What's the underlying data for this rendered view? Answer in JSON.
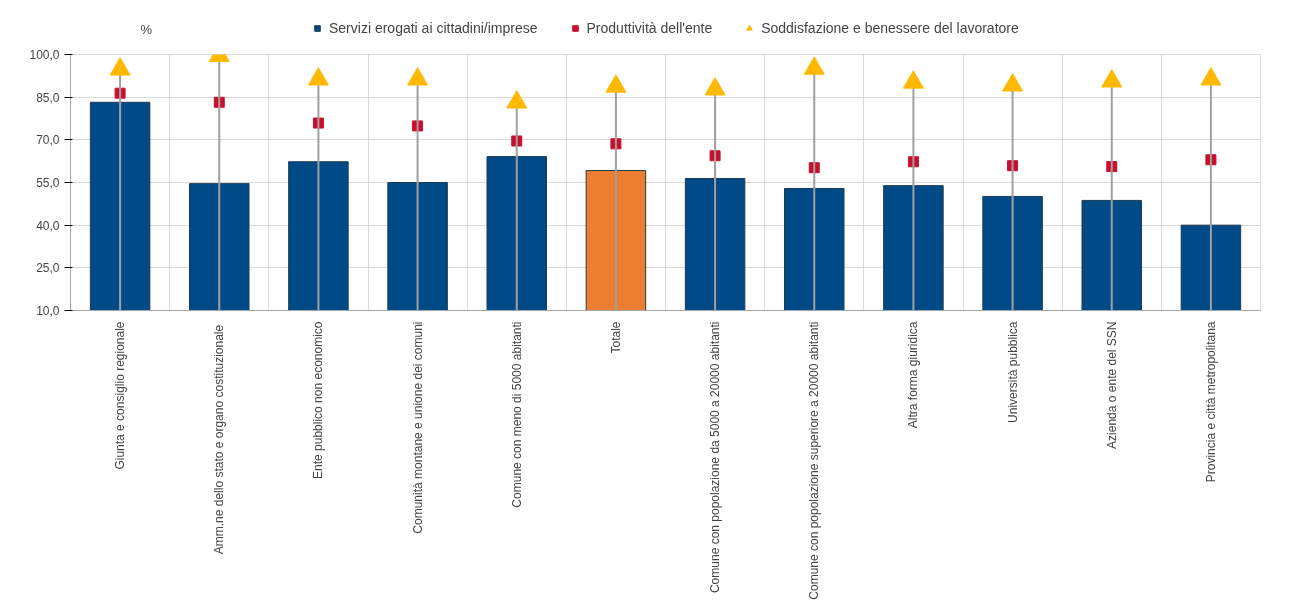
{
  "chart_data": {
    "type": "bar",
    "ylabel": "%",
    "categories": [
      "Giunta e consiglio regionale",
      "Amm.ne dello stato  e organo costituzionale",
      "Ente pubblico non economico",
      "Comunità montane e unione dei comuni",
      "Comune con meno di 5000 abitanti",
      "Totale",
      "Comune con popolazione da 5000 a 20000 abitanti",
      "Comune con popolazione superiore a 20000 abitanti",
      "Altra forma giuridica",
      "Università pubblica",
      "Azienda o ente del SSN",
      "Provincia e città metropolitana"
    ],
    "series": [
      {
        "name": "Servizi erogati ai cittadini/imprese",
        "color": "#004a87",
        "colors": [
          "#004a87",
          "#004a87",
          "#004a87",
          "#004a87",
          "#004a87",
          "#ed7d31",
          "#004a87",
          "#004a87",
          "#004a87",
          "#004a87",
          "#004a87",
          "#004a87"
        ],
        "values": [
          83.2,
          54.6,
          62.3,
          55.0,
          64.1,
          59.2,
          56.4,
          52.9,
          53.9,
          50.1,
          48.7,
          40.0
        ]
      },
      {
        "name": "Produttività dell'ente",
        "type": "scatter",
        "marker": "square",
        "color": "#c8102e",
        "values": [
          86.4,
          83.2,
          75.9,
          74.9,
          69.6,
          68.6,
          64.4,
          60.2,
          62.3,
          60.9,
          60.6,
          63.0
        ]
      },
      {
        "name": "Soddisfazione e benessere del lavoratore",
        "type": "lollipop",
        "marker": "triangle",
        "color": "#ffb900",
        "values": [
          94.8,
          99.6,
          91.3,
          91.3,
          83.2,
          88.8,
          87.8,
          95.1,
          90.2,
          89.2,
          90.6,
          91.3
        ]
      }
    ],
    "ylim": [
      10,
      100
    ],
    "yticks": [
      {
        "value": 10,
        "label": "10,0"
      },
      {
        "value": 25,
        "label": "25,0"
      },
      {
        "value": 40,
        "label": "40,0"
      },
      {
        "value": 55,
        "label": "55,0"
      },
      {
        "value": 70,
        "label": "70,0"
      },
      {
        "value": 85,
        "label": "85,0"
      },
      {
        "value": 100,
        "label": "100,0"
      }
    ],
    "grid": true,
    "legend": "top"
  }
}
